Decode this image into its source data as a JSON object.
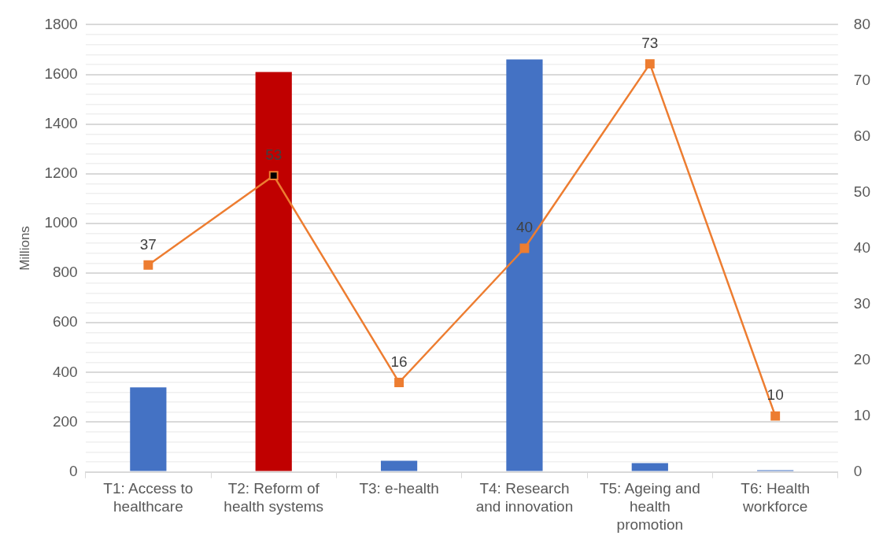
{
  "chart_data": {
    "type": "bar",
    "ylabel": "Millions",
    "categories": [
      "T1: Access to healthcare",
      "T2: Reform of health systems",
      "T3: e-health",
      "T4: Research and innovation",
      "T5: Ageing and health promotion",
      "T6: Health workforce"
    ],
    "series": [
      {
        "colors": [
          "#4472c4",
          "#c00000",
          "#4472c4",
          "#4472c4",
          "#4472c4",
          "#4472c4"
        ],
        "values": [
          340,
          1610,
          45,
          1660,
          35,
          7
        ]
      },
      {
        "type": "line",
        "axis": "y2",
        "color": "#ed7d31",
        "colors": [
          "#ed7d31",
          "#000000",
          "#ed7d31",
          "#ed7d31",
          "#ed7d31",
          "#ed7d31"
        ],
        "values": [
          37,
          53,
          16,
          40,
          73,
          10
        ],
        "value_labels": [
          "37",
          "53",
          "16",
          "40",
          "73",
          "10"
        ]
      }
    ],
    "ylim": [
      0,
      1800
    ],
    "yticks": [
      0,
      {
        "value": 40,
        "label": null
      },
      {
        "value": 80,
        "label": null
      },
      {
        "value": 120,
        "label": null
      },
      {
        "value": 160,
        "label": null
      },
      200,
      {
        "value": 240,
        "label": null
      },
      {
        "value": 280,
        "label": null
      },
      {
        "value": 320,
        "label": null
      },
      {
        "value": 360,
        "label": null
      },
      400,
      {
        "value": 440,
        "label": null
      },
      {
        "value": 480,
        "label": null
      },
      {
        "value": 520,
        "label": null
      },
      {
        "value": 560,
        "label": null
      },
      600,
      {
        "value": 640,
        "label": null
      },
      {
        "value": 680,
        "label": null
      },
      {
        "value": 720,
        "label": null
      },
      {
        "value": 760,
        "label": null
      },
      800,
      {
        "value": 840,
        "label": null
      },
      {
        "value": 880,
        "label": null
      },
      {
        "value": 920,
        "label": null
      },
      {
        "value": 960,
        "label": null
      },
      1000,
      {
        "value": 1040,
        "label": null
      },
      {
        "value": 1080,
        "label": null
      },
      {
        "value": 1120,
        "label": null
      },
      {
        "value": 1160,
        "label": null
      },
      1200,
      {
        "value": 1240,
        "label": null
      },
      {
        "value": 1280,
        "label": null
      },
      {
        "value": 1320,
        "label": null
      },
      {
        "value": 1360,
        "label": null
      },
      1400,
      {
        "value": 1440,
        "label": null
      },
      {
        "value": 1480,
        "label": null
      },
      {
        "value": 1520,
        "label": null
      },
      {
        "value": 1560,
        "label": null
      },
      1600,
      {
        "value": 1640,
        "label": null
      },
      {
        "value": 1680,
        "label": null
      },
      {
        "value": 1720,
        "label": null
      },
      {
        "value": 1760,
        "label": null
      },
      1800
    ],
    "y2lim": [
      0,
      80
    ],
    "y2ticks": [
      0,
      10,
      20,
      30,
      40,
      50,
      60,
      70,
      80
    ],
    "grid": "y",
    "legend": false,
    "marker": "square",
    "line_style": "solid"
  }
}
